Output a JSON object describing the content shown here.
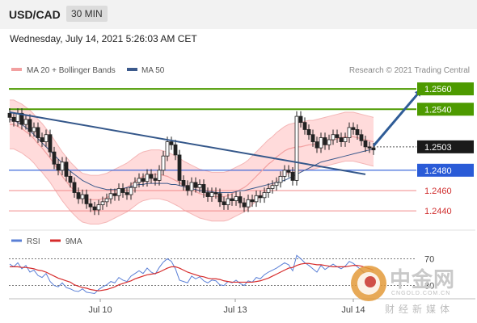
{
  "header": {
    "symbol": "USD/CAD",
    "timeframe": "30 MIN"
  },
  "datetime": "Wednesday, July 14, 2021 5:26:03 AM CET",
  "colors": {
    "ma20": "#f2a0a0",
    "band": "#ffd5d5",
    "ma50": "#3c5a8c",
    "resistance": "#4d9a00",
    "support_blue": "#2a5bd7",
    "support_red": "#f08a8a",
    "trend": "#34578a",
    "arrow": "#2f5c97",
    "candle": "#222222"
  },
  "watermark": {
    "text": "中金网",
    "url": "CNGOLD.COM.CN",
    "sub": "财经新媒体"
  },
  "chart_data": [
    {
      "type": "candlestick",
      "legend": [
        {
          "label": "MA 20 + Bollinger Bands",
          "color": "#f2a0a0"
        },
        {
          "label": "MA 50",
          "color": "#3c5a8c"
        }
      ],
      "credit": "Research © 2021 Trading Central",
      "x_ticks": [
        "Jul 10",
        "Jul 13",
        "Jul 14"
      ],
      "x_tick_positions": [
        1,
        2,
        3
      ],
      "ylim": [
        1.2433,
        1.2568
      ],
      "levels": [
        {
          "value": 1.256,
          "label": "1.2560",
          "kind": "resistance"
        },
        {
          "value": 1.254,
          "label": "1.2540",
          "kind": "resistance"
        },
        {
          "value": 1.2503,
          "label": "1.2503",
          "kind": "current"
        },
        {
          "value": 1.248,
          "label": "1.2480",
          "kind": "pivot"
        },
        {
          "value": 1.246,
          "label": "1.2460",
          "kind": "support"
        },
        {
          "value": 1.244,
          "label": "1.2440",
          "kind": "support"
        }
      ],
      "closes": [
        1.2532,
        1.2528,
        1.2536,
        1.2525,
        1.253,
        1.2518,
        1.2522,
        1.2512,
        1.2508,
        1.2515,
        1.2498,
        1.2486,
        1.248,
        1.2488,
        1.2474,
        1.2468,
        1.2458,
        1.2452,
        1.2456,
        1.2447,
        1.2444,
        1.2441,
        1.2446,
        1.2449,
        1.2452,
        1.2457,
        1.2455,
        1.2462,
        1.2458,
        1.2456,
        1.2463,
        1.2468,
        1.2472,
        1.2469,
        1.2476,
        1.2472,
        1.247,
        1.248,
        1.2494,
        1.2508,
        1.2505,
        1.2495,
        1.247,
        1.2465,
        1.246,
        1.2468,
        1.2463,
        1.2466,
        1.2458,
        1.2454,
        1.2458,
        1.2457,
        1.2449,
        1.2446,
        1.2452,
        1.245,
        1.2454,
        1.2448,
        1.2444,
        1.2451,
        1.2449,
        1.2455,
        1.2453,
        1.2458,
        1.2462,
        1.2465,
        1.2468,
        1.2474,
        1.248,
        1.2478,
        1.247,
        1.2533,
        1.2527,
        1.252,
        1.2515,
        1.2508,
        1.2502,
        1.2512,
        1.2505,
        1.251,
        1.2515,
        1.2512,
        1.2508,
        1.2512,
        1.2522,
        1.252,
        1.2515,
        1.2509,
        1.2503,
        1.2502,
        1.25
      ],
      "ma20": [
        1.2525,
        1.2525,
        1.2523,
        1.2521,
        1.2518,
        1.2515,
        1.2511,
        1.2506,
        1.2502,
        1.2497,
        1.2492,
        1.2486,
        1.248,
        1.2474,
        1.2469,
        1.2464,
        1.246,
        1.2456,
        1.2453,
        1.2452,
        1.2451,
        1.2451,
        1.2451,
        1.2452,
        1.2453,
        1.2455,
        1.2457,
        1.2459,
        1.2461,
        1.2463,
        1.2466,
        1.2469,
        1.2472,
        1.2474,
        1.2475,
        1.2476,
        1.2476,
        1.2476,
        1.2475,
        1.2474,
        1.2472,
        1.247,
        1.2468,
        1.2465,
        1.2463,
        1.2461,
        1.2459,
        1.2457,
        1.2456,
        1.2455,
        1.2454,
        1.2454,
        1.2454,
        1.2454,
        1.2455,
        1.2457,
        1.2459,
        1.2461,
        1.2463,
        1.2466,
        1.247,
        1.2474,
        1.2478,
        1.2482,
        1.2486,
        1.2489,
        1.2493,
        1.2496,
        1.2499,
        1.2501,
        1.2502,
        1.2503,
        1.2503,
        1.2504,
        1.2505,
        1.2505,
        1.2506,
        1.2507,
        1.2508,
        1.2509,
        1.251,
        1.2511,
        1.2512,
        1.2513,
        1.2513,
        1.2513,
        1.2512,
        1.2511,
        1.251,
        1.2509,
        1.2508
      ],
      "ma50": [
        1.253,
        1.2529,
        1.2527,
        1.2525,
        1.2522,
        1.2519,
        1.2515,
        1.2511,
        1.2507,
        1.2503,
        1.2499,
        1.2495,
        1.2491,
        1.2487,
        1.2483,
        1.2479,
        1.2476,
        1.2473,
        1.247,
        1.2468,
        1.2466,
        1.2464,
        1.2463,
        1.2462,
        1.2461,
        1.2461,
        1.2461,
        1.2461,
        1.2462,
        1.2463,
        1.2464,
        1.2465,
        1.2466,
        1.2466,
        1.2467,
        1.2467,
        1.2467,
        1.2467,
        1.2467,
        1.2467,
        1.2466,
        1.2466,
        1.2465,
        1.2464,
        1.2463,
        1.2462,
        1.2461,
        1.246,
        1.246,
        1.2459,
        1.2459,
        1.2458,
        1.2458,
        1.2458,
        1.2458,
        1.2458,
        1.2459,
        1.246,
        1.246,
        1.2461,
        1.2462,
        1.2463,
        1.2464,
        1.2465,
        1.2466,
        1.2467,
        1.2468,
        1.2469,
        1.247,
        1.2472,
        1.2474,
        1.2476,
        1.2478,
        1.248,
        1.2482,
        1.2484,
        1.2486,
        1.2488,
        1.2489,
        1.249,
        1.2491,
        1.2492,
        1.2493,
        1.2494,
        1.2495,
        1.2496,
        1.2497,
        1.2498,
        1.2499,
        1.25,
        1.2501
      ],
      "band_width": 0.0024,
      "trendline": [
        [
          0,
          1.2537
        ],
        [
          88,
          1.2476
        ]
      ],
      "projection": {
        "from": [
          90,
          1.2504
        ],
        "to": [
          102,
          1.256
        ]
      }
    },
    {
      "type": "line",
      "legend": [
        {
          "label": "RSI",
          "color": "#5a7fd6"
        },
        {
          "label": "9MA",
          "color": "#d62b2b"
        }
      ],
      "levels": [
        {
          "value": 70,
          "label": "70"
        },
        {
          "value": 30,
          "label": "30"
        }
      ],
      "ylim": [
        15,
        85
      ],
      "rsi": [
        62,
        58,
        64,
        55,
        60,
        50,
        53,
        45,
        42,
        48,
        36,
        30,
        28,
        34,
        27,
        25,
        22,
        21,
        25,
        20,
        19,
        18,
        24,
        28,
        31,
        36,
        34,
        42,
        38,
        36,
        44,
        48,
        52,
        48,
        56,
        50,
        47,
        57,
        65,
        70,
        66,
        55,
        38,
        36,
        34,
        44,
        40,
        43,
        37,
        34,
        38,
        37,
        31,
        30,
        36,
        34,
        38,
        33,
        30,
        37,
        35,
        42,
        40,
        46,
        50,
        53,
        56,
        60,
        64,
        61,
        52,
        75,
        70,
        64,
        60,
        55,
        50,
        60,
        54,
        58,
        62,
        58,
        55,
        59,
        66,
        63,
        58,
        53,
        47,
        46,
        44
      ],
      "ma9": [
        58,
        58,
        58,
        57,
        57,
        56,
        55,
        53,
        52,
        50,
        47,
        44,
        41,
        39,
        37,
        35,
        31,
        29,
        27,
        26,
        24,
        23,
        22,
        23,
        24,
        26,
        28,
        31,
        33,
        35,
        37,
        40,
        42,
        44,
        46,
        47,
        48,
        50,
        53,
        56,
        58,
        58,
        56,
        53,
        50,
        48,
        46,
        44,
        43,
        41,
        40,
        40,
        39,
        37,
        36,
        35,
        35,
        35,
        35,
        35,
        35,
        36,
        37,
        39,
        41,
        44,
        47,
        50,
        53,
        56,
        57,
        60,
        62,
        63,
        63,
        62,
        61,
        61,
        60,
        59,
        58,
        58,
        58,
        58,
        59,
        60,
        60,
        59,
        57,
        55,
        53
      ]
    }
  ]
}
